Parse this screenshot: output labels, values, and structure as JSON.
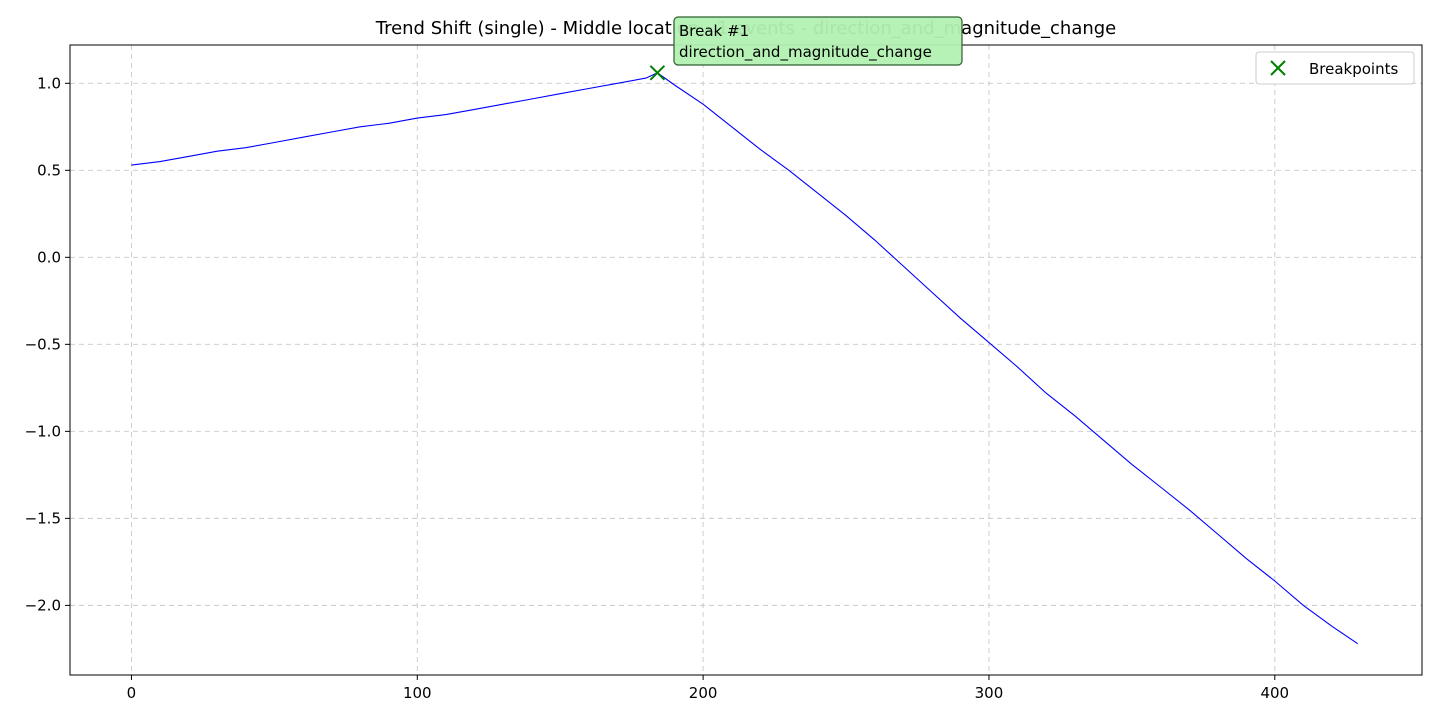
{
  "chart_data": {
    "type": "line",
    "title": "Trend Shift (single) - Middle location - 1 events - direction_and_magnitude_change",
    "xlabel": "",
    "ylabel": "",
    "xlim": [
      -21.5,
      451.5
    ],
    "ylim": [
      -2.4,
      1.22
    ],
    "x_ticks": [
      0,
      100,
      200,
      300,
      400
    ],
    "y_ticks": [
      1.0,
      0.5,
      0.0,
      -0.5,
      -1.0,
      -1.5,
      -2.0
    ],
    "x_tick_labels": [
      "0",
      "100",
      "200",
      "300",
      "400"
    ],
    "y_tick_labels": [
      "1.0",
      "0.5",
      "0.0",
      "−0.5",
      "−1.0",
      "−1.5",
      "−2.0"
    ],
    "grid": true,
    "legend_position": "top-right",
    "series": [
      {
        "color": "#0000ff",
        "x": [
          0,
          10,
          20,
          30,
          40,
          50,
          60,
          70,
          80,
          90,
          100,
          110,
          120,
          130,
          140,
          150,
          160,
          170,
          180,
          184,
          190,
          200,
          210,
          220,
          230,
          240,
          250,
          260,
          270,
          280,
          290,
          300,
          310,
          320,
          330,
          340,
          350,
          360,
          370,
          380,
          390,
          400,
          410,
          420,
          429
        ],
        "y": [
          0.53,
          0.55,
          0.58,
          0.61,
          0.63,
          0.66,
          0.69,
          0.72,
          0.75,
          0.77,
          0.8,
          0.82,
          0.85,
          0.88,
          0.91,
          0.94,
          0.97,
          1.0,
          1.03,
          1.06,
          0.99,
          0.88,
          0.75,
          0.62,
          0.5,
          0.37,
          0.24,
          0.1,
          -0.05,
          -0.2,
          -0.35,
          -0.49,
          -0.63,
          -0.78,
          -0.91,
          -1.05,
          -1.19,
          -1.32,
          -1.45,
          -1.59,
          -1.73,
          -1.86,
          -2.0,
          -2.12,
          -2.22
        ]
      }
    ],
    "breakpoints": [
      {
        "x": 184,
        "y": 1.06,
        "label": "Break #1\ndirection_and_magnitude_change"
      }
    ],
    "legend": [
      {
        "label": "Breakpoints",
        "marker": "x",
        "color": "#008000"
      }
    ],
    "annotation": {
      "line1": "Break #1",
      "line2": "direction_and_magnitude_change",
      "box_color": "#b2f0b2"
    }
  }
}
